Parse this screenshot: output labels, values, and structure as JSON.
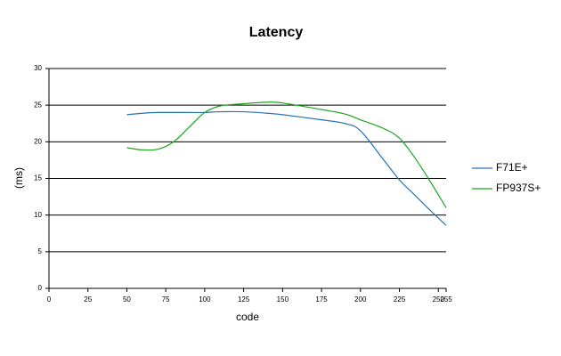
{
  "chart_data": {
    "type": "line",
    "title": "Latency",
    "xlabel": "code",
    "ylabel": "(ms)",
    "x": [
      50,
      60,
      70,
      80,
      90,
      100,
      110,
      125,
      140,
      150,
      175,
      190,
      200,
      215,
      225,
      235,
      245,
      255
    ],
    "series": [
      {
        "name": "F71E+",
        "color": "#2672b8",
        "values": [
          23.7,
          23.9,
          24.0,
          24.0,
          24.0,
          24.0,
          24.1,
          24.1,
          23.9,
          23.7,
          23.0,
          22.5,
          21.5,
          17.5,
          14.8,
          12.7,
          10.6,
          8.6
        ]
      },
      {
        "name": "FP937S+",
        "color": "#1fa51f",
        "values": [
          19.2,
          18.9,
          19.0,
          20.0,
          22.0,
          24.0,
          24.9,
          25.2,
          25.4,
          25.3,
          24.4,
          23.8,
          23.0,
          21.8,
          20.5,
          17.8,
          14.5,
          11.0
        ]
      }
    ],
    "xlim": [
      0,
      255
    ],
    "xticks": [
      0,
      25,
      50,
      75,
      100,
      125,
      150,
      175,
      200,
      225,
      250,
      255
    ],
    "ylim": [
      0,
      30
    ],
    "yticks": [
      0,
      5,
      10,
      15,
      20,
      25,
      30
    ],
    "grid": true,
    "legend": "right"
  }
}
